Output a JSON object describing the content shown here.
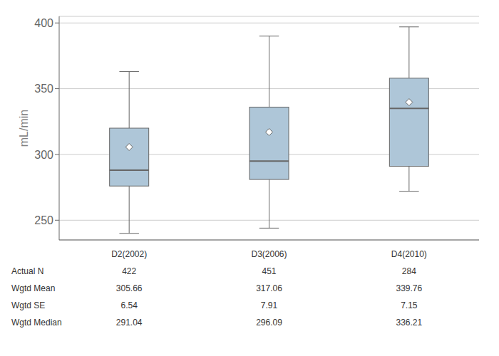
{
  "chart_data": {
    "type": "box",
    "ylabel": "mL/min",
    "categories": [
      "D2(2002)",
      "D3(2006)",
      "D4(2010)"
    ],
    "boxes": [
      {
        "q1": 276,
        "median": 288,
        "q3": 320,
        "whislo": 240,
        "whishi": 363,
        "mean": 305.66
      },
      {
        "q1": 281,
        "median": 295,
        "q3": 336,
        "whislo": 244,
        "whishi": 390,
        "mean": 317.06
      },
      {
        "q1": 291,
        "median": 335,
        "q3": 358,
        "whislo": 272,
        "whishi": 397,
        "mean": 339.76
      }
    ],
    "color": "#aec6d8",
    "ylim": [
      235,
      405
    ],
    "yticks": [
      250,
      300,
      350,
      400
    ],
    "grid": true,
    "table": {
      "rows": [
        {
          "label": "Actual N",
          "values": [
            422,
            451,
            284
          ]
        },
        {
          "label": "Wgtd Mean",
          "values": [
            305.66,
            317.06,
            339.76
          ]
        },
        {
          "label": "Wgtd SE",
          "values": [
            6.54,
            7.91,
            7.15
          ]
        },
        {
          "label": "Wgtd Median",
          "values": [
            291.04,
            296.09,
            336.21
          ]
        }
      ]
    }
  }
}
